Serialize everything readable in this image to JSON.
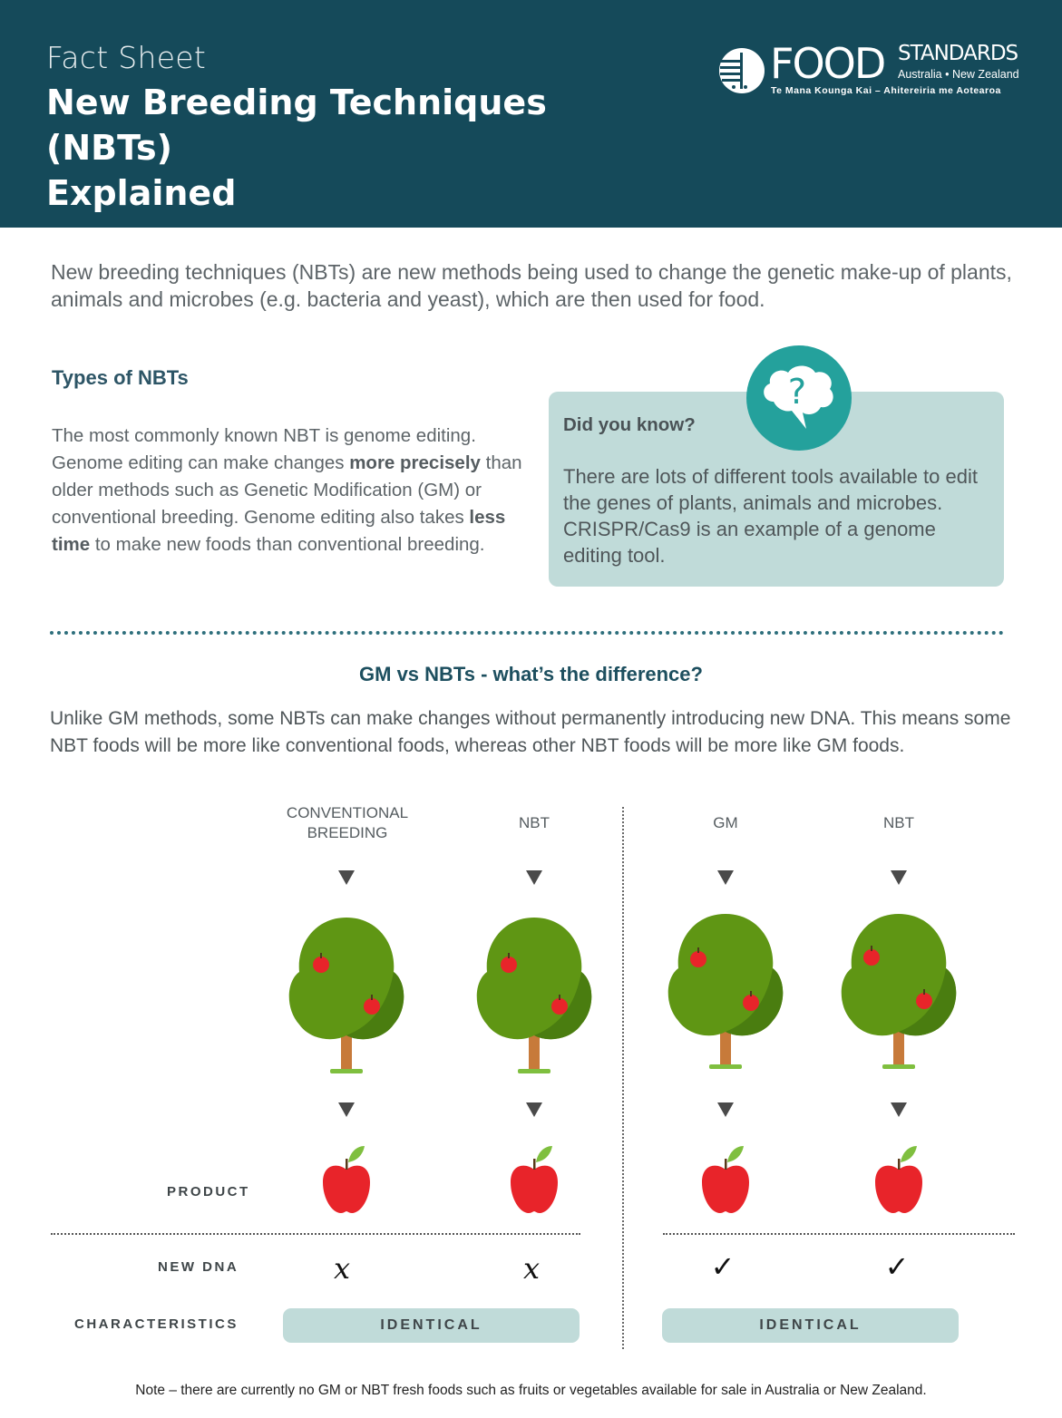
{
  "header": {
    "kicker": "Fact Sheet",
    "title_line1": "New Breeding Techniques (NBTs)",
    "title_line2": "Explained",
    "logo": {
      "word1": "FOOD",
      "word2": "STANDARDS",
      "countries": "Australia • New Zealand",
      "maori": "Te Mana Kounga Kai – Ahitereiria me Aotearoa"
    },
    "colors": {
      "background": "#154a5a",
      "text": "#ffffff"
    }
  },
  "intro": "New breeding techniques (NBTs) are new methods being used to change the genetic make-up of plants, animals and microbes (e.g. bacteria and yeast), which are then used for food.",
  "types": {
    "heading": "Types of NBTs",
    "p1": "The most commonly known NBT is genome editing. Genome editing can make changes ",
    "bold1": "more precisely",
    "p2": " than older methods such as Genetic Modification (GM) or conventional breeding. Genome editing also takes ",
    "bold2": "less time",
    "p3": " to make new foods than conventional breeding."
  },
  "did_you_know": {
    "heading": "Did you know?",
    "text": "There are lots of different tools available to edit the genes of plants, animals and microbes. CRISPR/Cas9 is an example of a genome editing tool.",
    "icon": "question-bubble-icon",
    "icon_glyph": "?",
    "colors": {
      "box": "#c0dbd9",
      "icon": "#24a19c"
    }
  },
  "comparison": {
    "heading": "GM vs NBTs - what’s the difference?",
    "text": "Unlike GM methods, some NBTs can make changes without permanently introducing new DNA. This means some NBT foods will be more like conventional foods, whereas other NBT foods will be more like GM foods.",
    "columns": [
      {
        "label_line1": "CONVENTIONAL",
        "label_line2": "BREEDING",
        "new_dna": "x"
      },
      {
        "label_line1": "NBT",
        "label_line2": "",
        "new_dna": "x"
      },
      {
        "label_line1": "GM",
        "label_line2": "",
        "new_dna": "✓"
      },
      {
        "label_line1": "NBT",
        "label_line2": "",
        "new_dna": "✓"
      }
    ],
    "row_labels": {
      "product": "PRODUCT",
      "new_dna": "NEW DNA",
      "characteristics": "CHARACTERISTICS"
    },
    "characteristics": [
      "IDENTICAL",
      "IDENTICAL"
    ],
    "colors": {
      "tree_leaves": "#5f9614",
      "tree_shadow": "#4a7d10",
      "trunk": "#c77a3a",
      "apple": "#e8242a",
      "leaf": "#7fbf3f"
    }
  },
  "note": "Note – there are currently no GM or NBT fresh foods such as fruits or vegetables available for sale in Australia or New Zealand."
}
